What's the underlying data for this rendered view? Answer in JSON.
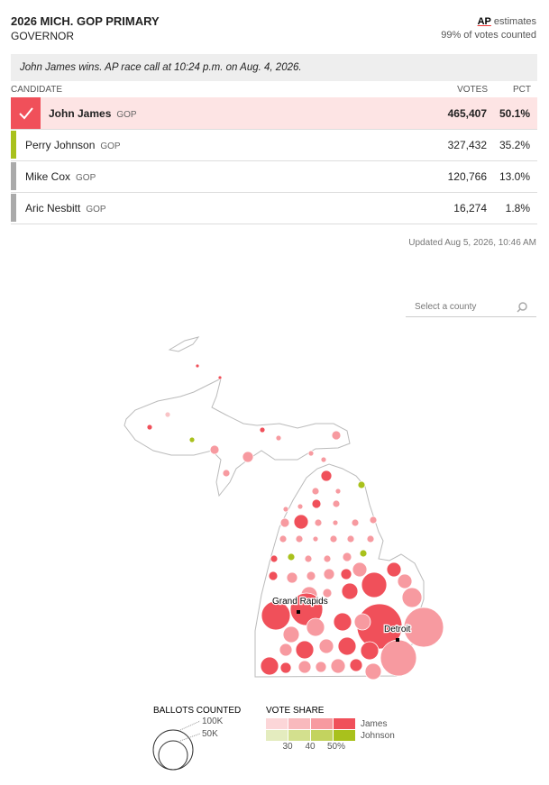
{
  "header": {
    "title": "2026 MICH. GOP PRIMARY",
    "subtitle": "GOVERNOR",
    "source": "AP",
    "source_label": "estimates",
    "reporting": "99% of votes counted"
  },
  "race_call": "John James wins. AP race call at 10:24 p.m. on Aug. 4, 2026.",
  "table": {
    "columns": [
      "CANDIDATE",
      "VOTES",
      "PCT"
    ],
    "rows": [
      [
        "John James",
        "GOP",
        "465,407",
        "50.1%"
      ],
      [
        "Perry Johnson",
        "GOP",
        "327,432",
        "35.2%"
      ],
      [
        "Mike Cox",
        "GOP",
        "120,766",
        "13.0%"
      ],
      [
        "Aric Nesbitt",
        "GOP",
        "16,274",
        "1.8%"
      ]
    ]
  },
  "updated": "Updated Aug 5, 2026, 10:46 AM",
  "search": {
    "placeholder": "Select a county"
  },
  "map": {
    "labels": [
      "Grand Rapids",
      "Detroit"
    ]
  },
  "legend": {
    "size_title": "BALLOTS COUNTED",
    "sizes": [
      "100K",
      "50K"
    ],
    "share_title": "VOTE SHARE",
    "shares": [
      "30",
      "40",
      "50%"
    ],
    "candidates": [
      "James",
      "Johnson"
    ]
  }
}
